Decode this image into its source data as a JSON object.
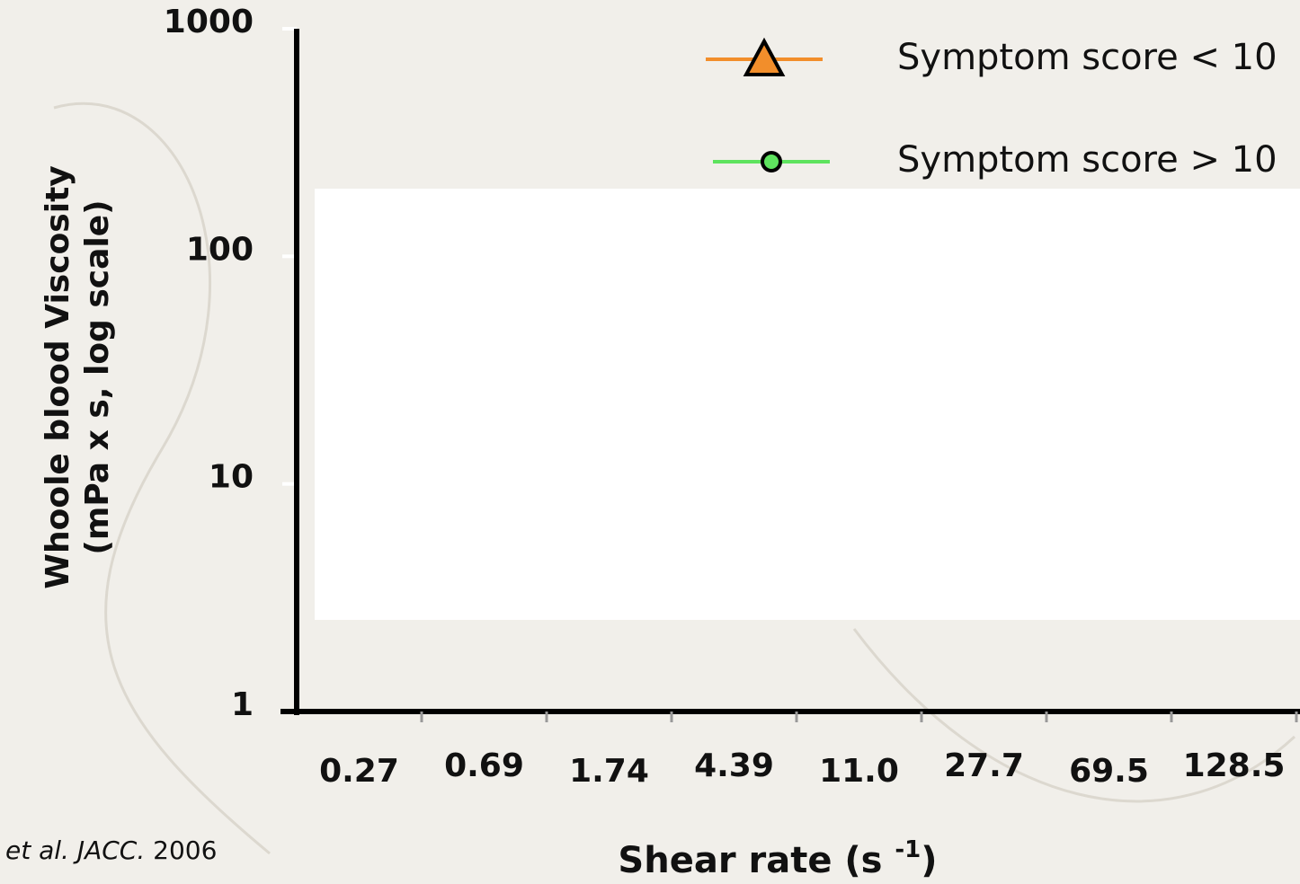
{
  "chart_data": {
    "type": "line",
    "y_label": [
      "Whoole blood Viscosity",
      "(mPa x s, log scale)"
    ],
    "x_label": [
      "Shear rate (s ",
      "-1",
      ")"
    ],
    "source": [
      "et al.  JACC.",
      "2006"
    ],
    "categories": [
      "0.27",
      "0.69",
      "1.74",
      "4.39",
      "11.0",
      "27.7",
      "69.5",
      "128.5"
    ],
    "series": [
      {
        "name": "Symptom score < 10",
        "color": "#f28e2b",
        "marker": "triangle",
        "marker_color": "#f28e2b",
        "values": [
          null,
          null,
          null,
          null,
          null,
          null,
          null,
          null
        ]
      },
      {
        "name": "Symptom score > 10",
        "color": "#5ee35e",
        "marker": "circle",
        "marker_color": "#5ee35e",
        "values": [
          null,
          null,
          null,
          null,
          null,
          null,
          null,
          null
        ]
      }
    ],
    "ylim": [
      1,
      1000
    ],
    "yticks": [
      1,
      10,
      100,
      1000
    ],
    "log_y": true,
    "legend": "top-right"
  }
}
